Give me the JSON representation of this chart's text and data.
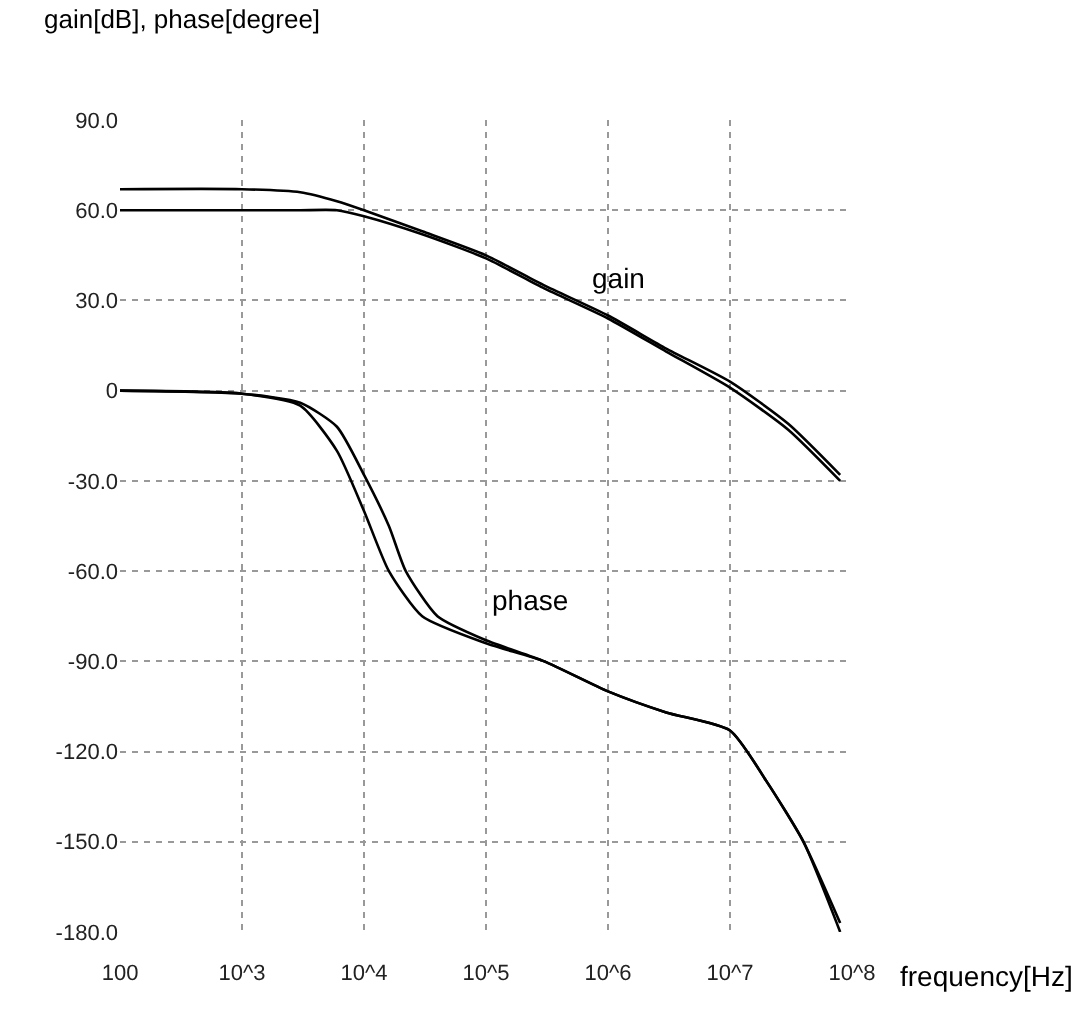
{
  "chart_data": {
    "type": "line",
    "xlabel": "frequency[Hz]",
    "ylabel": "gain[dB], phase[degree]",
    "log": "x",
    "grid": true,
    "line_style": "solid",
    "marker": "none",
    "xlim": [
      100,
      100000000
    ],
    "xticks": [
      100,
      {
        "value": 1000,
        "label": "10^3"
      },
      {
        "value": 10000,
        "label": "10^4"
      },
      {
        "value": 100000,
        "label": "10^5"
      },
      {
        "value": 1000000,
        "label": "10^6"
      },
      {
        "value": 10000000,
        "label": "10^7"
      },
      {
        "value": 100000000,
        "label": "10^8"
      }
    ],
    "ylim": [
      -180,
      90
    ],
    "yticks": [
      {
        "value": 90,
        "label": "90.0"
      },
      {
        "value": 60,
        "label": "60.0"
      },
      {
        "value": 30,
        "label": "30.0"
      },
      0,
      {
        "value": -30,
        "label": "-30.0"
      },
      {
        "value": -60,
        "label": "-60.0"
      },
      {
        "value": -90,
        "label": "-90.0"
      },
      {
        "value": -120,
        "label": "-120.0"
      },
      {
        "value": -150,
        "label": "-150.0"
      },
      {
        "value": -180,
        "label": "-180.0"
      }
    ],
    "annotations": [
      "gain",
      "phase"
    ],
    "series": [
      {
        "color": "#000000",
        "x": [
          100,
          1000,
          3000,
          6000,
          10000,
          30000,
          100000,
          300000,
          1000000,
          3000000,
          10000000,
          30000000,
          80000000
        ],
        "values": [
          67,
          67,
          66,
          63,
          60,
          53,
          45,
          35,
          25,
          14,
          3,
          -11,
          -28
        ]
      },
      {
        "color": "#000000",
        "x": [
          100,
          1000,
          3000,
          6000,
          10000,
          30000,
          100000,
          300000,
          1000000,
          3000000,
          10000000,
          30000000,
          80000000
        ],
        "values": [
          60,
          60,
          60,
          60,
          58,
          52,
          44,
          34,
          24,
          13,
          1,
          -13,
          -30
        ]
      },
      {
        "color": "#000000",
        "x": [
          100,
          1000,
          3000,
          6000,
          10000,
          16000,
          30000,
          100000,
          300000,
          1000000,
          3000000,
          10000000,
          20000000,
          40000000,
          80000000
        ],
        "values": [
          0,
          -1,
          -5,
          -20,
          -40,
          -60,
          -75,
          -84,
          -90,
          -100,
          -107,
          -113,
          -130,
          -150,
          -180
        ]
      },
      {
        "color": "#000000",
        "x": [
          100,
          1000,
          3000,
          6000,
          10000,
          16000,
          22000,
          40000,
          100000,
          300000,
          1000000,
          3000000,
          10000000,
          20000000,
          40000000,
          80000000
        ],
        "values": [
          0,
          -1,
          -4,
          -12,
          -28,
          -45,
          -60,
          -75,
          -83,
          -90,
          -100,
          -107,
          -113,
          -130,
          -150,
          -177
        ]
      }
    ]
  }
}
